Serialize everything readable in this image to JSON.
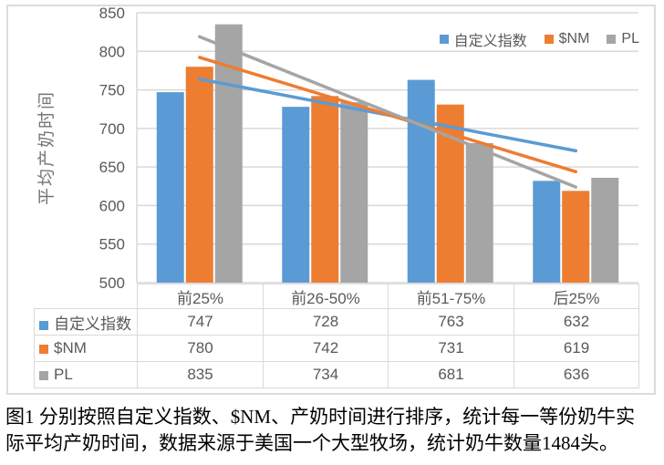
{
  "chart_data": {
    "type": "bar",
    "categories": [
      "前25%",
      "前26-50%",
      "前51-75%",
      "后25%"
    ],
    "series": [
      {
        "name": "自定义指数",
        "color": "#5B9BD5",
        "values": [
          747,
          728,
          763,
          632
        ],
        "trendline": "linear"
      },
      {
        "name": "$NM",
        "color": "#ED7D31",
        "values": [
          780,
          742,
          731,
          619
        ],
        "trendline": "linear"
      },
      {
        "name": "PL",
        "color": "#A5A5A5",
        "values": [
          835,
          734,
          681,
          636
        ],
        "trendline": "linear"
      }
    ],
    "title": "",
    "xlabel": "",
    "ylabel": "平均产奶时间",
    "ylim": [
      500,
      850
    ],
    "ytick_step": 50,
    "grid": true,
    "legend_position": "top-right",
    "data_table": true
  },
  "styles": {
    "grid_color": "#d9d9d9",
    "axis_text_color": "#595959",
    "axis_title_color": "#757575",
    "frame_border_color": "#dcdcdc"
  },
  "caption": {
    "lines": [
      "图1 分别按照自定义指数、$NM、产奶时间进行排序，统计每一等份奶牛实",
      "际平均产奶时间，数据来源于美国一个大型牧场，统计奶牛数量1484头。"
    ]
  }
}
